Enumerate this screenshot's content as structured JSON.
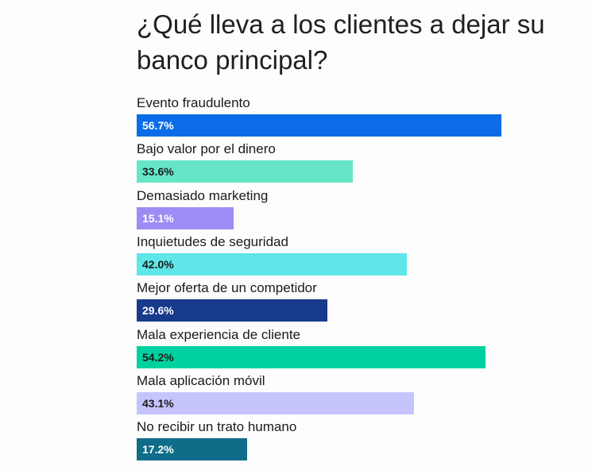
{
  "chart_data": {
    "type": "bar",
    "orientation": "horizontal",
    "title": "¿Qué lleva a los clientes a dejar su banco principal?",
    "xlim": [
      0,
      100
    ],
    "grid": false,
    "legend": "none",
    "value_format": "{v}%",
    "categories": [
      "Evento fraudulento",
      "Bajo valor por el dinero",
      "Demasiado marketing",
      "Inquietudes de seguridad",
      "Mejor oferta de un competidor",
      "Mala experiencia de cliente",
      "Mala aplicación móvil",
      "No recibir un trato humano"
    ],
    "values": [
      56.7,
      33.6,
      15.1,
      42.0,
      29.6,
      54.2,
      43.1,
      17.2
    ],
    "data_labels": [
      "56.7%",
      "33.6%",
      "15.1%",
      "42.0%",
      "29.6%",
      "54.2%",
      "43.1%",
      "17.2%"
    ],
    "colors": [
      "#0a6ce6",
      "#66e6c6",
      "#9e8cf4",
      "#5ee6e9",
      "#173a8c",
      "#00d1a0",
      "#c6c4fc",
      "#0f6d89"
    ],
    "label_colors": [
      "#ffffff",
      "#1a1a1a",
      "#ffffff",
      "#1a1a1a",
      "#ffffff",
      "#1a1a1a",
      "#1a1a1a",
      "#ffffff"
    ]
  }
}
